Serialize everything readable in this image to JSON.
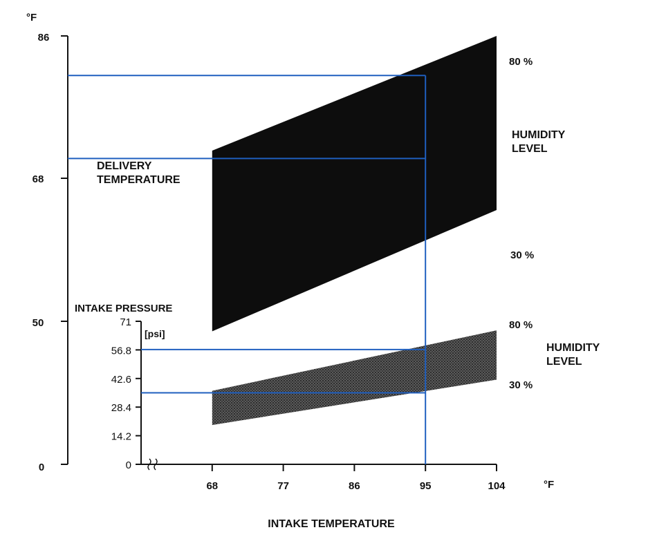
{
  "chart_data": {
    "type": "area",
    "left_axis": {
      "unit": "°F",
      "ticks": [
        "86",
        "68",
        "50",
        "0"
      ],
      "label_line1": "DELIVERY",
      "label_line2": "TEMPERATURE"
    },
    "inner_axis": {
      "title": "INTAKE PRESSURE",
      "unit": "[psi]",
      "ticks": [
        "71",
        "56.8",
        "42.6",
        "28.4",
        "14.2",
        "0"
      ],
      "ylim": [
        0,
        71
      ]
    },
    "x_axis": {
      "label": "INTAKE TEMPERATURE",
      "unit": "°F",
      "ticks": [
        "68",
        "77",
        "86",
        "95",
        "104"
      ],
      "xlim": [
        59,
        104
      ]
    },
    "series": [
      {
        "group": "delivery_temperature",
        "color": "#0d0d0d",
        "upper_curve": {
          "x": [
            68,
            104
          ],
          "y": [
            71.5,
            86
          ]
        },
        "lower_curve": {
          "x": [
            68,
            104
          ],
          "y": [
            46.5,
            64
          ]
        },
        "upper_label": "80 %",
        "lower_label": "30 %",
        "band_label_line1": "HUMIDITY",
        "band_label_line2": "LEVEL"
      },
      {
        "group": "intake_pressure",
        "color": "#4a4a4a",
        "upper_curve": {
          "x": [
            68,
            104
          ],
          "y": [
            36.5,
            66.5
          ]
        },
        "lower_curve": {
          "x": [
            68,
            104
          ],
          "y": [
            19.5,
            42
          ]
        },
        "upper_label": "80 %",
        "lower_label": "30 %",
        "band_label_line1": "HUMIDITY",
        "band_label_line2": "LEVEL"
      }
    ],
    "reference": {
      "color": "#1f5fbf",
      "intake_temperature": 95,
      "delivery_temperature_range": [
        70.5,
        81
      ],
      "intake_pressure_range": [
        35.5,
        57
      ]
    }
  }
}
